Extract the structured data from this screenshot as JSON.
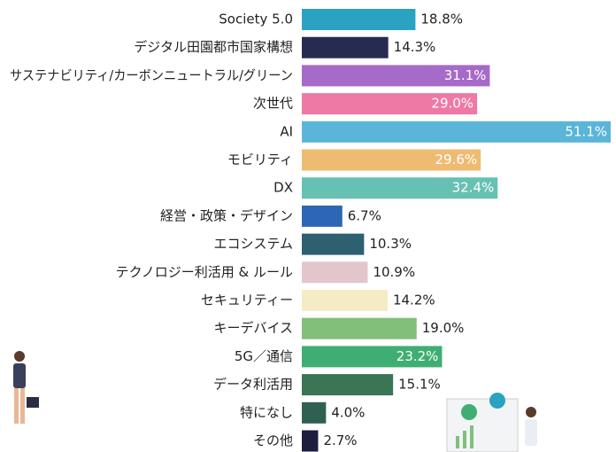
{
  "chart_data": {
    "type": "bar",
    "orientation": "horizontal",
    "categories": [
      "Society 5.0",
      "デジタル田園都市国家構想",
      "サステナビリティ/カーボンニュートラル/グリーン",
      "次世代",
      "AI",
      "モビリティ",
      "DX",
      "経営・政策・デザイン",
      "エコシステム",
      "テクノロジー利活用 & ルール",
      "セキュリティー",
      "キーデバイス",
      "5G／通信",
      "データ利活用",
      "特になし",
      "その他"
    ],
    "values": [
      18.8,
      14.3,
      31.1,
      29.0,
      51.1,
      29.6,
      32.4,
      6.7,
      10.3,
      10.9,
      14.2,
      19.0,
      23.2,
      15.1,
      4.0,
      2.7
    ],
    "value_labels": [
      "18.8%",
      "14.3%",
      "31.1%",
      "29.0%",
      "51.1%",
      "29.6%",
      "32.4%",
      "6.7%",
      "10.3%",
      "10.9%",
      "14.2%",
      "19.0%",
      "23.2%",
      "15.1%",
      "4.0%",
      "2.7%"
    ],
    "colors": [
      "#2aa3c0",
      "#272b52",
      "#a66ac8",
      "#ee79a5",
      "#5ab5d8",
      "#eebb72",
      "#66c1b3",
      "#2d66b5",
      "#2d6070",
      "#e3c6cc",
      "#f4ecc4",
      "#82bf7a",
      "#3fae72",
      "#3a7556",
      "#2f6153",
      "#1d1d3f"
    ]
  }
}
